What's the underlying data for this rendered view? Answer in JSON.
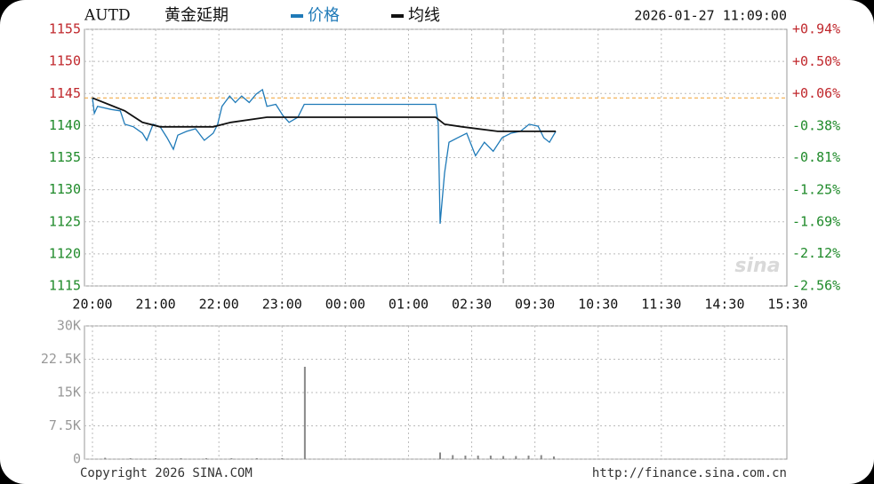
{
  "chart_data": [
    {
      "type": "line",
      "symbol": "AUTD",
      "title": "黄金延期",
      "timestamp": "2026-01-27 11:09:00",
      "xlim": [
        0,
        11
      ],
      "xticks": [
        {
          "value": 0,
          "label": "20:00"
        },
        {
          "value": 1,
          "label": "21:00"
        },
        {
          "value": 2,
          "label": "22:00"
        },
        {
          "value": 3,
          "label": "23:00"
        },
        {
          "value": 4,
          "label": "00:00"
        },
        {
          "value": 5,
          "label": "01:00"
        },
        {
          "value": 6,
          "label": "02:30"
        },
        {
          "value": 7,
          "label": "09:30"
        },
        {
          "value": 8,
          "label": "10:30"
        },
        {
          "value": 9,
          "label": "11:30"
        },
        {
          "value": 10,
          "label": "14:30"
        },
        {
          "value": 11,
          "label": "15:30"
        }
      ],
      "ylim": [
        1115,
        1155
      ],
      "yticks": [
        1115,
        1120,
        1125,
        1130,
        1135,
        1140,
        1145,
        1150,
        1155
      ],
      "y2lim": [
        -2.56,
        0.94
      ],
      "y2ticks": [
        {
          "value": -2.56,
          "label": "-2.56%"
        },
        {
          "value": -2.12,
          "label": "-2.12%"
        },
        {
          "value": -1.69,
          "label": "-1.69%"
        },
        {
          "value": -1.25,
          "label": "-1.25%"
        },
        {
          "value": -0.81,
          "label": "-0.81%"
        },
        {
          "value": -0.38,
          "label": "-0.38%"
        },
        {
          "value": 0.06,
          "label": "+0.06%"
        },
        {
          "value": 0.5,
          "label": "+0.50%"
        },
        {
          "value": 0.94,
          "label": "+0.94%"
        }
      ],
      "reference": 1144.3,
      "reference_color": "#f0a030",
      "session_break": 6.5,
      "grid": true,
      "up_color": "#c0282d",
      "down_color": "#1f8a2a",
      "watermark": "sina",
      "series": [
        {
          "name": "价格",
          "color": "#1f7ab8",
          "x": [
            0,
            0.03,
            0.08,
            0.3,
            0.44,
            0.51,
            0.65,
            0.79,
            0.86,
            0.96,
            1.07,
            1.18,
            1.28,
            1.35,
            1.49,
            1.63,
            1.77,
            1.91,
            1.98,
            2.05,
            2.17,
            2.26,
            2.36,
            2.48,
            2.59,
            2.69,
            2.76,
            2.9,
            3.01,
            3.11,
            3.25,
            3.35,
            5.43,
            5.47,
            5.5,
            5.57,
            5.64,
            5.78,
            5.92,
            6.06,
            6.2,
            6.34,
            6.48,
            6.62,
            6.77,
            6.91,
            7.05,
            7.14,
            7.23,
            7.33
          ],
          "values": [
            1144.3,
            1141.9,
            1143,
            1142.5,
            1142.3,
            1140.2,
            1139.8,
            1138.8,
            1137.7,
            1140.2,
            1139.8,
            1138.1,
            1136.3,
            1138.5,
            1139.1,
            1139.5,
            1137.7,
            1138.8,
            1140.2,
            1143,
            1144.6,
            1143.6,
            1144.6,
            1143.6,
            1144.9,
            1145.6,
            1143,
            1143.3,
            1141.6,
            1140.5,
            1141.3,
            1143.3,
            1143.3,
            1140.2,
            1124.7,
            1132.6,
            1137.4,
            1138.1,
            1138.8,
            1135.3,
            1137.4,
            1136,
            1138.1,
            1138.8,
            1139.1,
            1140.2,
            1139.9,
            1138.1,
            1137.4,
            1139.1
          ]
        },
        {
          "name": "均线",
          "color": "#111111",
          "x": [
            0,
            0.51,
            0.79,
            1.07,
            1.91,
            2.19,
            2.76,
            3.35,
            5.43,
            5.57,
            5.85,
            6.41,
            6.98,
            7.33
          ],
          "values": [
            1144.3,
            1142.3,
            1140.5,
            1139.8,
            1139.8,
            1140.5,
            1141.3,
            1141.3,
            1141.3,
            1140.2,
            1139.8,
            1139.1,
            1139.1,
            1139.1
          ]
        }
      ]
    },
    {
      "type": "bar",
      "color": "#888888",
      "xlim": [
        0,
        11
      ],
      "ylim": [
        0,
        30000
      ],
      "grid": true,
      "yticks": [
        0,
        {
          "value": 7500,
          "label": "7.5K"
        },
        {
          "value": 15000,
          "label": "15K"
        },
        {
          "value": 22500,
          "label": "22.5K"
        },
        {
          "value": 30000,
          "label": "30K"
        }
      ],
      "x": [
        0.2,
        0.6,
        1.0,
        1.4,
        1.8,
        2.2,
        2.6,
        3.0,
        3.36,
        5.5,
        5.7,
        5.9,
        6.1,
        6.3,
        6.5,
        6.7,
        6.9,
        7.1,
        7.3
      ],
      "values": [
        300,
        200,
        200,
        200,
        200,
        200,
        200,
        200,
        20800,
        1500,
        900,
        800,
        800,
        800,
        700,
        700,
        800,
        900,
        600
      ],
      "source": "Copyright 2026 SINA.COM",
      "url": "http://finance.sina.com.cn"
    }
  ]
}
